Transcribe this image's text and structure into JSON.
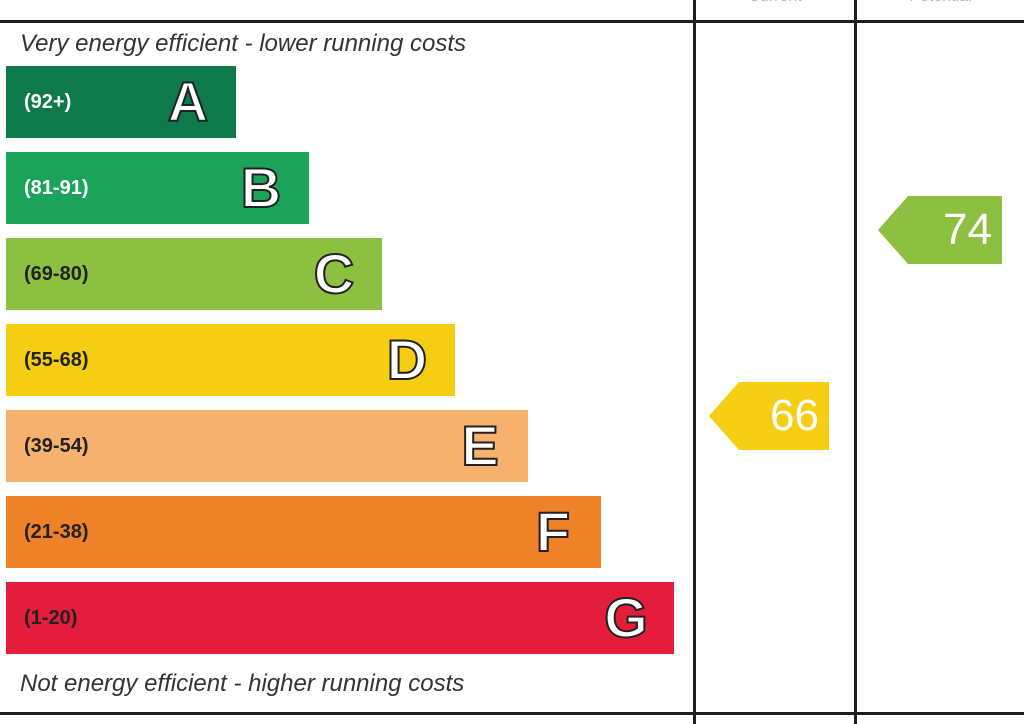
{
  "chart_data": {
    "type": "bar",
    "title": "",
    "top_caption": "Very energy efficient - lower running costs",
    "bottom_caption": "Not energy efficient - higher running costs",
    "column_headers": [
      "Current",
      "Potential"
    ],
    "bands": [
      {
        "letter": "A",
        "range": "(92+)",
        "color": "#0e7a4a",
        "range_color": "#ffffff"
      },
      {
        "letter": "B",
        "range": "(81-91)",
        "color": "#1ba459",
        "range_color": "#ffffff"
      },
      {
        "letter": "C",
        "range": "(69-80)",
        "color": "#8dc040",
        "range_color": "#222222"
      },
      {
        "letter": "D",
        "range": "(55-68)",
        "color": "#f5cd13",
        "range_color": "#222222"
      },
      {
        "letter": "E",
        "range": "(39-54)",
        "color": "#f6b16e",
        "range_color": "#222222"
      },
      {
        "letter": "F",
        "range": "(21-38)",
        "color": "#ef8129",
        "range_color": "#222222"
      },
      {
        "letter": "G",
        "range": "(1-20)",
        "color": "#e31d3b",
        "range_color": "#222222"
      }
    ],
    "ratings": [
      {
        "column": "Current",
        "value": 66,
        "band": "D",
        "color": "#f5cd13"
      },
      {
        "column": "Potential",
        "value": 74,
        "band": "C",
        "color": "#8dc040"
      }
    ]
  }
}
